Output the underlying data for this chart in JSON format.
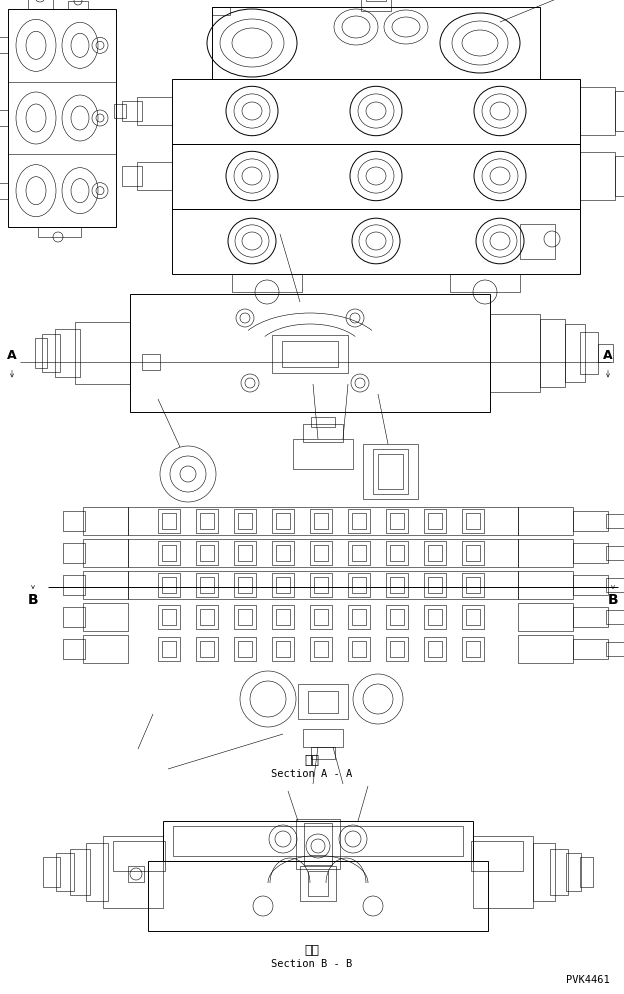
{
  "bg_color": "#ffffff",
  "line_color": "#000000",
  "fig_width": 6.24,
  "fig_height": 9.95,
  "dpi": 100,
  "lw_thin": 0.4,
  "lw_med": 0.7,
  "lw_thick": 1.0,
  "pvk_text": "PVK4461",
  "section_aa_jp": "断面",
  "section_aa_en": "Section A - A",
  "section_bb_jp": "断面",
  "section_bb_en": "Section B - B"
}
